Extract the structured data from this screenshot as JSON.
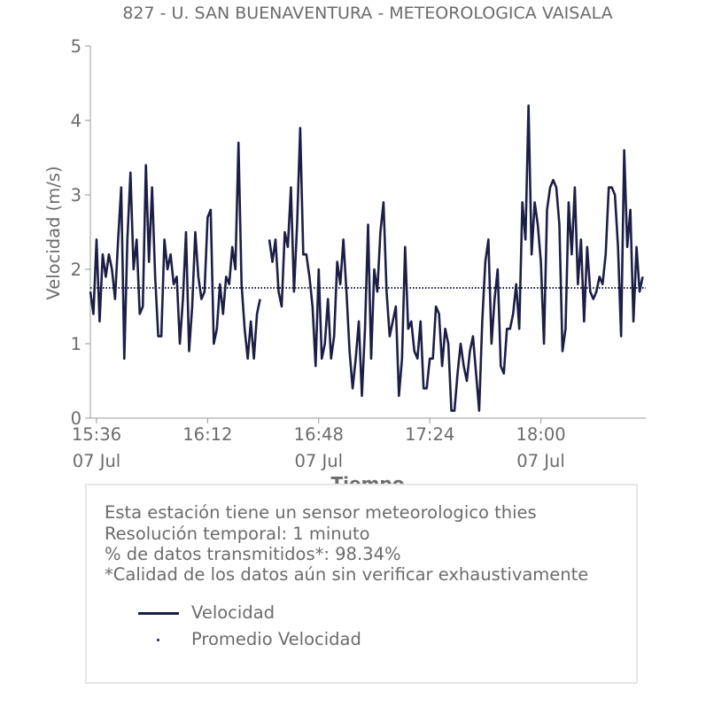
{
  "chart_data": {
    "type": "line",
    "title": "827 - U. SAN BUENAVENTURA - METEOROLOGICA VAISALA",
    "xlabel": "Tiempo",
    "ylabel": "Velocidad (m/s)",
    "ylim": [
      0,
      5
    ],
    "yticks": [
      "0",
      "1",
      "2",
      "3",
      "4",
      "5"
    ],
    "xlim": [
      "15:34",
      "18:34"
    ],
    "xticks": [
      {
        "time": "15:36",
        "label": "15:36",
        "sublabel": "07 Jul"
      },
      {
        "time": "16:12",
        "label": "16:12",
        "sublabel": ""
      },
      {
        "time": "16:48",
        "label": "16:48",
        "sublabel": "07 Jul"
      },
      {
        "time": "17:24",
        "label": "17:24",
        "sublabel": ""
      },
      {
        "time": "18:00",
        "label": "18:00",
        "sublabel": "07 Jul"
      }
    ],
    "grid": false,
    "series": [
      {
        "name": "Velocidad",
        "color": "#1c1f45",
        "style": "solid",
        "points": [
          [
            "15:34",
            1.7
          ],
          [
            "15:35",
            1.4
          ],
          [
            "15:36",
            2.4
          ],
          [
            "15:37",
            1.3
          ],
          [
            "15:38",
            2.2
          ],
          [
            "15:39",
            1.9
          ],
          [
            "15:40",
            2.2
          ],
          [
            "15:41",
            2.0
          ],
          [
            "15:42",
            1.6
          ],
          [
            "15:43",
            2.4
          ],
          [
            "15:44",
            3.1
          ],
          [
            "15:45",
            0.8
          ],
          [
            "15:46",
            2.4
          ],
          [
            "15:47",
            3.3
          ],
          [
            "15:48",
            2.0
          ],
          [
            "15:49",
            2.4
          ],
          [
            "15:50",
            1.4
          ],
          [
            "15:51",
            1.5
          ],
          [
            "15:52",
            3.4
          ],
          [
            "15:53",
            2.1
          ],
          [
            "15:54",
            3.1
          ],
          [
            "15:55",
            1.9
          ],
          [
            "15:56",
            1.1
          ],
          [
            "15:57",
            1.1
          ],
          [
            "15:58",
            2.4
          ],
          [
            "15:59",
            2.0
          ],
          [
            "16:00",
            2.2
          ],
          [
            "16:01",
            1.8
          ],
          [
            "16:02",
            1.9
          ],
          [
            "16:03",
            1.0
          ],
          [
            "16:04",
            1.6
          ],
          [
            "16:05",
            2.5
          ],
          [
            "16:06",
            0.9
          ],
          [
            "16:07",
            1.5
          ],
          [
            "16:08",
            2.5
          ],
          [
            "16:09",
            1.9
          ],
          [
            "16:10",
            1.6
          ],
          [
            "16:11",
            1.7
          ],
          [
            "16:12",
            2.7
          ],
          [
            "16:13",
            2.8
          ],
          [
            "16:14",
            1.0
          ],
          [
            "16:15",
            1.2
          ],
          [
            "16:16",
            1.8
          ],
          [
            "16:17",
            1.4
          ],
          [
            "16:18",
            1.9
          ],
          [
            "16:19",
            1.8
          ],
          [
            "16:20",
            2.3
          ],
          [
            "16:21",
            2.0
          ],
          [
            "16:22",
            3.7
          ],
          [
            "16:23",
            1.8
          ],
          [
            "16:24",
            1.2
          ],
          [
            "16:25",
            0.8
          ],
          [
            "16:26",
            1.3
          ],
          [
            "16:27",
            0.8
          ],
          [
            "16:28",
            1.4
          ],
          [
            "16:29",
            1.6
          ],
          null,
          [
            "16:32",
            2.4
          ],
          [
            "16:33",
            2.1
          ],
          [
            "16:34",
            2.4
          ],
          [
            "16:35",
            1.7
          ],
          [
            "16:36",
            1.5
          ],
          [
            "16:37",
            2.5
          ],
          [
            "16:38",
            2.3
          ],
          [
            "16:39",
            3.1
          ],
          [
            "16:40",
            1.7
          ],
          [
            "16:41",
            2.6
          ],
          [
            "16:42",
            3.9
          ],
          [
            "16:43",
            2.2
          ],
          [
            "16:44",
            2.2
          ],
          [
            "16:45",
            1.9
          ],
          [
            "16:46",
            1.5
          ],
          [
            "16:47",
            0.7
          ],
          [
            "16:48",
            2.0
          ],
          [
            "16:49",
            0.8
          ],
          [
            "16:50",
            1.0
          ],
          [
            "16:51",
            1.6
          ],
          [
            "16:52",
            0.8
          ],
          [
            "16:53",
            1.1
          ],
          [
            "16:54",
            2.1
          ],
          [
            "16:55",
            1.8
          ],
          [
            "16:56",
            2.4
          ],
          [
            "16:57",
            1.7
          ],
          [
            "16:58",
            0.9
          ],
          [
            "16:59",
            0.4
          ],
          [
            "17:00",
            0.8
          ],
          [
            "17:01",
            1.3
          ],
          [
            "17:02",
            0.3
          ],
          [
            "17:03",
            1.2
          ],
          [
            "17:04",
            2.6
          ],
          [
            "17:05",
            0.8
          ],
          [
            "17:06",
            2.0
          ],
          [
            "17:07",
            1.7
          ],
          [
            "17:08",
            2.5
          ],
          [
            "17:09",
            2.9
          ],
          [
            "17:10",
            1.7
          ],
          [
            "17:11",
            1.1
          ],
          [
            "17:12",
            1.3
          ],
          [
            "17:13",
            1.5
          ],
          [
            "17:14",
            0.3
          ],
          [
            "17:15",
            0.8
          ],
          [
            "17:16",
            2.3
          ],
          [
            "17:17",
            1.2
          ],
          [
            "17:18",
            1.3
          ],
          [
            "17:19",
            0.9
          ],
          [
            "17:20",
            0.8
          ],
          [
            "17:21",
            1.3
          ],
          [
            "17:22",
            0.4
          ],
          [
            "17:23",
            0.4
          ],
          [
            "17:24",
            0.8
          ],
          [
            "17:25",
            0.8
          ],
          [
            "17:26",
            1.5
          ],
          [
            "17:27",
            1.4
          ],
          [
            "17:28",
            0.7
          ],
          [
            "17:29",
            1.2
          ],
          [
            "17:30",
            1.0
          ],
          [
            "17:31",
            0.1
          ],
          [
            "17:32",
            0.1
          ],
          [
            "17:33",
            0.6
          ],
          [
            "17:34",
            1.0
          ],
          [
            "17:35",
            0.7
          ],
          [
            "17:36",
            0.5
          ],
          [
            "17:37",
            0.9
          ],
          [
            "17:38",
            1.1
          ],
          [
            "17:39",
            0.6
          ],
          [
            "17:40",
            0.1
          ],
          [
            "17:41",
            1.3
          ],
          [
            "17:42",
            2.1
          ],
          [
            "17:43",
            2.4
          ],
          [
            "17:44",
            1.0
          ],
          [
            "17:45",
            1.6
          ],
          [
            "17:46",
            2.0
          ],
          [
            "17:47",
            0.7
          ],
          [
            "17:48",
            0.6
          ],
          [
            "17:49",
            1.2
          ],
          [
            "17:50",
            1.2
          ],
          [
            "17:51",
            1.4
          ],
          [
            "17:52",
            1.8
          ],
          [
            "17:53",
            1.2
          ],
          [
            "17:54",
            2.9
          ],
          [
            "17:55",
            2.4
          ],
          [
            "17:56",
            4.2
          ],
          [
            "17:57",
            2.2
          ],
          [
            "17:58",
            2.9
          ],
          [
            "17:59",
            2.6
          ],
          [
            "18:00",
            2.1
          ],
          [
            "18:01",
            1.0
          ],
          [
            "18:02",
            2.8
          ],
          [
            "18:03",
            3.1
          ],
          [
            "18:04",
            3.2
          ],
          [
            "18:05",
            3.1
          ],
          [
            "18:06",
            2.6
          ],
          [
            "18:07",
            0.9
          ],
          [
            "18:08",
            1.2
          ],
          [
            "18:09",
            2.9
          ],
          [
            "18:10",
            2.2
          ],
          [
            "18:11",
            3.1
          ],
          [
            "18:12",
            1.8
          ],
          [
            "18:13",
            2.4
          ],
          [
            "18:14",
            1.3
          ],
          [
            "18:15",
            2.3
          ],
          [
            "18:16",
            1.7
          ],
          [
            "18:17",
            1.6
          ],
          [
            "18:18",
            1.7
          ],
          [
            "18:19",
            1.9
          ],
          [
            "18:20",
            1.8
          ],
          [
            "18:21",
            2.2
          ],
          [
            "18:22",
            3.1
          ],
          [
            "18:23",
            3.1
          ],
          [
            "18:24",
            3.0
          ],
          [
            "18:25",
            2.3
          ],
          [
            "18:26",
            1.1
          ],
          [
            "18:27",
            3.6
          ],
          [
            "18:28",
            2.3
          ],
          [
            "18:29",
            2.8
          ],
          [
            "18:30",
            1.3
          ],
          [
            "18:31",
            2.3
          ],
          [
            "18:32",
            1.7
          ],
          [
            "18:33",
            1.9
          ]
        ]
      },
      {
        "name": "Promedio Velocidad",
        "color": "#1c1f45",
        "style": "dotted",
        "points": [
          [
            "15:34",
            1.75
          ],
          [
            "18:34",
            1.75
          ]
        ]
      }
    ]
  },
  "info": {
    "line1": "Esta estación tiene un sensor meteorologico thies",
    "line2": "Resolución temporal: 1 minuto",
    "line3": "% de datos transmitidos*: 98.34%",
    "line4": "*Calidad de los datos aún sin verificar exhaustivamente"
  },
  "legend": {
    "items": [
      {
        "label": "Velocidad"
      },
      {
        "label": "Promedio Velocidad"
      }
    ]
  }
}
